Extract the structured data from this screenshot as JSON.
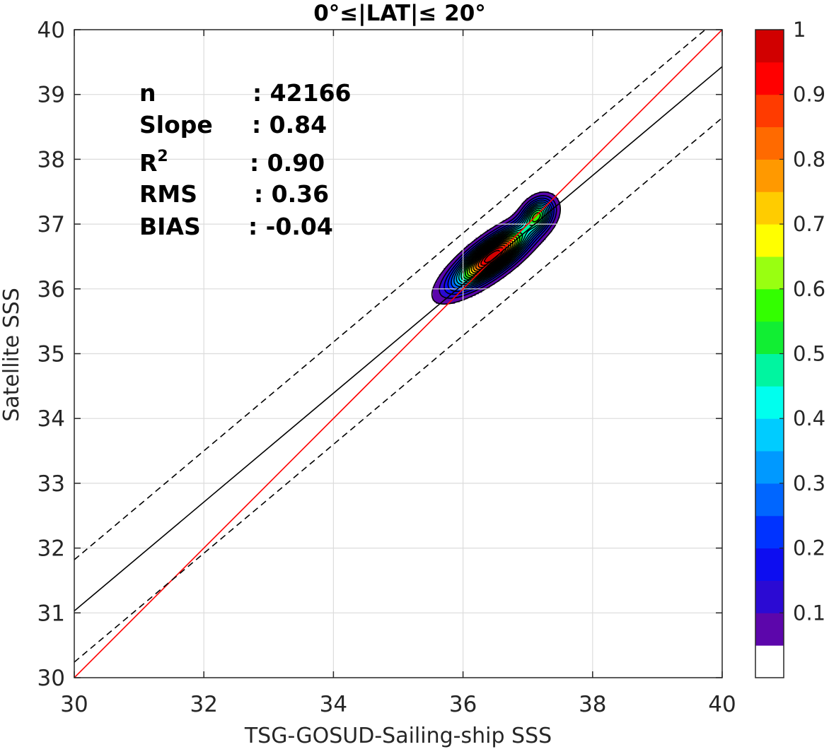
{
  "chart_data": {
    "type": "contour",
    "title": "0°≤|LAT|≤ 20°",
    "xlabel": "TSG-GOSUD-Sailing-ship SSS",
    "ylabel": "Satellite SSS",
    "xlim": [
      30,
      40
    ],
    "ylim": [
      30,
      40
    ],
    "xticks": [
      30,
      32,
      34,
      36,
      38,
      40
    ],
    "yticks": [
      30,
      31,
      32,
      33,
      34,
      35,
      36,
      37,
      38,
      39,
      40
    ],
    "grid": true,
    "stats": [
      {
        "label": "n",
        "value": ": 42166"
      },
      {
        "label": "Slope",
        "value": ": 0.84"
      },
      {
        "label": "R",
        "sup": "2",
        "value": ": 0.90"
      },
      {
        "label": "RMS",
        "value": ": 0.36"
      },
      {
        "label": "BIAS",
        "value": ": -0.04"
      }
    ],
    "lines": [
      {
        "name": "one-to-one",
        "color": "#ff0000",
        "style": "solid",
        "slope": 1.0,
        "intercept": 0.0
      },
      {
        "name": "regression-fit",
        "color": "#000000",
        "style": "solid",
        "slope": 0.84,
        "intercept": 5.83
      },
      {
        "name": "upper-bound",
        "color": "#000000",
        "style": "dashed",
        "slope": 0.84,
        "intercept": 6.62
      },
      {
        "name": "lower-bound",
        "color": "#000000",
        "style": "dashed",
        "slope": 0.84,
        "intercept": 5.04
      }
    ],
    "density": {
      "normalized": true,
      "peaks": [
        {
          "x": 36.45,
          "y": 36.5,
          "weight": 1.0,
          "sx": 0.38,
          "sy": 0.3,
          "rho": 0.8
        },
        {
          "x": 37.15,
          "y": 37.15,
          "weight": 0.48,
          "sx": 0.15,
          "sy": 0.16,
          "rho": 0.3
        }
      ]
    },
    "colorbar": {
      "levels": [
        0,
        0.05,
        0.1,
        0.15,
        0.2,
        0.25,
        0.3,
        0.35,
        0.4,
        0.45,
        0.5,
        0.55,
        0.6,
        0.65,
        0.7,
        0.75,
        0.8,
        0.85,
        0.9,
        0.95,
        1.0
      ],
      "colors": [
        "#ffffff",
        "#5c06ab",
        "#2b0ad3",
        "#0d0df0",
        "#0033ff",
        "#0066ff",
        "#0099ff",
        "#00ccff",
        "#00ffee",
        "#00f5a0",
        "#11ee33",
        "#33ff00",
        "#99ff11",
        "#ffff00",
        "#ffcc00",
        "#ff9900",
        "#ff6a00",
        "#ff3b00",
        "#ff0000",
        "#d10000"
      ],
      "top_color": "#800000",
      "tick_values": [
        0.1,
        0.2,
        0.3,
        0.4,
        0.5,
        0.6,
        0.7,
        0.8,
        0.9,
        1
      ],
      "tick_labels": [
        "0.1",
        "0.2",
        "0.3",
        "0.4",
        "0.5",
        "0.6",
        "0.7",
        "0.8",
        "0.9",
        "1"
      ]
    }
  }
}
